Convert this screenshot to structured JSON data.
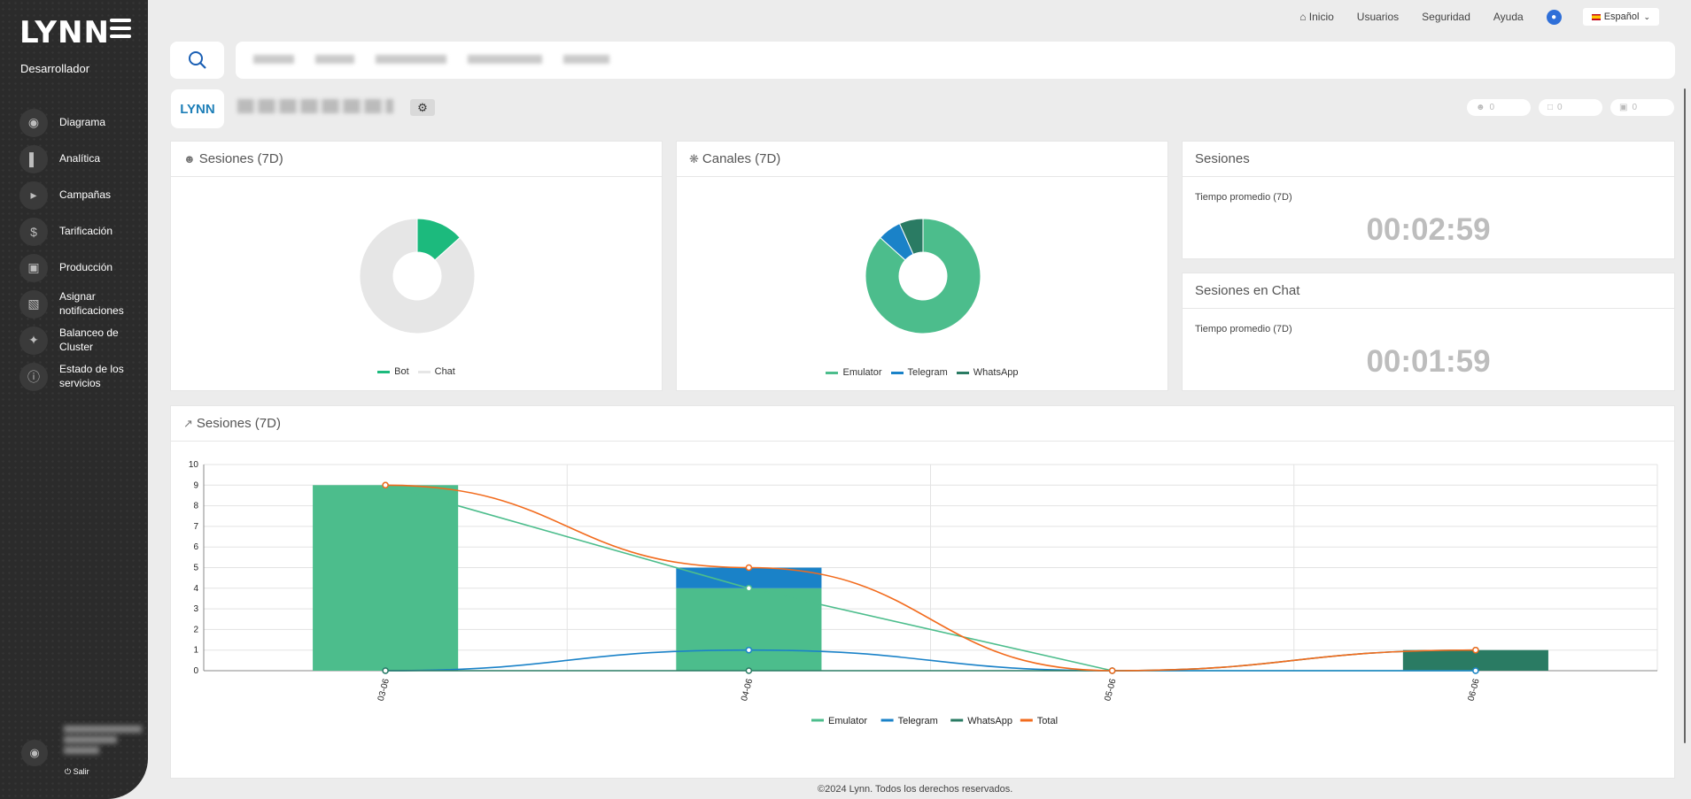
{
  "sidebar": {
    "logo": "LYNN",
    "role": "Desarrollador",
    "items": [
      {
        "label": "Diagrama",
        "icon": "palette-icon"
      },
      {
        "label": "Analítica",
        "icon": "bar-chart-icon"
      },
      {
        "label": "Campañas",
        "icon": "megaphone-icon"
      },
      {
        "label": "Tarificación",
        "icon": "dollar-icon"
      },
      {
        "label": "Producción",
        "icon": "briefcase-icon"
      },
      {
        "label": "Asignar notificaciones",
        "icon": "notification-icon"
      },
      {
        "label": "Balanceo de Cluster",
        "icon": "cluster-icon"
      },
      {
        "label": "Estado de los servicios",
        "icon": "info-icon"
      }
    ],
    "logout": "Salir"
  },
  "topnav": {
    "home": "Inicio",
    "users": "Usuarios",
    "security": "Seguridad",
    "help": "Ayuda",
    "language": "Español"
  },
  "bot": {
    "logo_text": "LYNN",
    "counters": [
      "0",
      "0",
      "0"
    ]
  },
  "cards": {
    "sessions_pie": {
      "title": "Sesiones (7D)",
      "legend": [
        "Bot",
        "Chat"
      ]
    },
    "channels_pie": {
      "title": "Canales (7D)",
      "legend": [
        "Emulator",
        "Telegram",
        "WhatsApp"
      ]
    },
    "sessions_stat": {
      "title": "Sesiones",
      "subtitle": "Tiempo promedio (7D)",
      "value": "00:02:59"
    },
    "chat_stat": {
      "title": "Sesiones en Chat",
      "subtitle": "Tiempo promedio (7D)",
      "value": "00:01:59"
    },
    "sessions_chart": {
      "title": "Sesiones (7D)"
    }
  },
  "colors": {
    "emulator": "#4cbd8c",
    "telegram": "#1a82c8",
    "whatsapp": "#2a7b63",
    "total": "#f26b1d",
    "bot": "#1cba7d",
    "chat": "#e6e6e6"
  },
  "footer": "©2024 Lynn. Todos los derechos reservados.",
  "chart_data": [
    {
      "type": "pie",
      "title": "Sesiones (7D)",
      "labels": [
        "Bot",
        "Chat"
      ],
      "values": [
        2,
        13
      ]
    },
    {
      "type": "pie",
      "title": "Canales (7D)",
      "labels": [
        "Emulator",
        "Telegram",
        "WhatsApp"
      ],
      "values": [
        13,
        1,
        1
      ]
    },
    {
      "type": "bar",
      "title": "Sesiones (7D)",
      "categories": [
        "03-06",
        "04-06",
        "05-06",
        "06-06"
      ],
      "stacked": true,
      "ylim": [
        0,
        10
      ],
      "yticks": [
        0,
        1,
        2,
        3,
        4,
        5,
        6,
        7,
        8,
        9,
        10
      ],
      "series": [
        {
          "name": "Emulator",
          "kind": "bar+line",
          "values": [
            9,
            4,
            0,
            0
          ]
        },
        {
          "name": "Telegram",
          "kind": "bar+line",
          "values": [
            0,
            1,
            0,
            0
          ]
        },
        {
          "name": "WhatsApp",
          "kind": "bar+line",
          "values": [
            0,
            0,
            0,
            1
          ]
        },
        {
          "name": "Total",
          "kind": "line",
          "values": [
            9,
            5,
            0,
            1
          ]
        }
      ],
      "legend": "bottom"
    }
  ]
}
